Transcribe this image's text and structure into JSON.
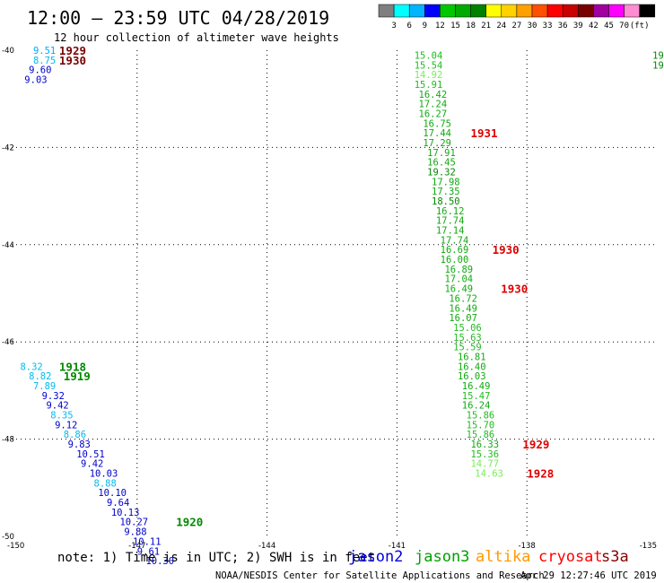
{
  "header": {
    "title": "12:00 — 23:59 UTC 04/28/2019",
    "subtitle": "12 hour collection of altimeter wave heights"
  },
  "color_scale": {
    "colors": [
      "#7f7f7f",
      "#00ffff",
      "#00b4ff",
      "#0000ff",
      "#00c800",
      "#00aa00",
      "#008200",
      "#ffff00",
      "#ffd200",
      "#ffa000",
      "#ff5000",
      "#ff0000",
      "#c80000",
      "#780000",
      "#a000a0",
      "#ff00ff",
      "#ff8cd2",
      "#000000"
    ],
    "labels": [
      "3",
      "6",
      "9",
      "12",
      "15",
      "18",
      "21",
      "24",
      "27",
      "30",
      "33",
      "36",
      "39",
      "42",
      "45",
      "70",
      "(ft)"
    ]
  },
  "footer": {
    "note": "note: 1) Time is in UTC; 2) SWH is in feet",
    "credit": "NOAA/NESDIS Center for Satellite Applications and Research",
    "timestamp": "Apr 29 12:27:46 UTC 2019"
  },
  "legend": [
    {
      "name": "jason2",
      "color": "#0000dd"
    },
    {
      "name": "jason3",
      "color": "#00a000"
    },
    {
      "name": "altika",
      "color": "#ff9900"
    },
    {
      "name": "cryosat",
      "color": "#ff0000"
    },
    {
      "name": "s3a",
      "color": "#880000"
    }
  ],
  "chart_data": {
    "type": "scatter",
    "title": "12:00 — 23:59 UTC 04/28/2019",
    "subtitle": "12 hour collection of altimeter wave heights",
    "xlim": [
      -150,
      -135
    ],
    "ylim": [
      -50,
      -40
    ],
    "x_ticks": [
      "-150",
      "-147",
      "-144",
      "-141",
      "-138",
      "-135"
    ],
    "y_ticks": [
      "-40",
      "-42",
      "-44",
      "-46",
      "-48",
      "-50"
    ],
    "grid": true,
    "colors": {
      "c6": "#00bbee",
      "c9": "#00aaff",
      "c12": "#0000cc",
      "c15": "#22bb22",
      "c18": "#11aa11",
      "c21": "#008800",
      "c24": "#c8c800",
      "c27": "#ddaa00",
      "c30": "#ff7700",
      "lg": "#77ee55",
      "red": "#dd0000",
      "dred": "#7a0000"
    },
    "points": [
      {
        "x": -149.4,
        "y": -40.0,
        "label": "9.51",
        "c": "c9"
      },
      {
        "x": -149.4,
        "y": -40.2,
        "label": "8.75",
        "c": "c6"
      },
      {
        "x": -149.5,
        "y": -40.4,
        "label": "9.60",
        "c": "c12"
      },
      {
        "x": -149.6,
        "y": -40.6,
        "label": "9.03",
        "c": "c12"
      },
      {
        "x": -149.7,
        "y": -46.5,
        "label": "8.32",
        "c": "c6"
      },
      {
        "x": -149.5,
        "y": -46.7,
        "label": "8.82",
        "c": "c6"
      },
      {
        "x": -149.4,
        "y": -46.9,
        "label": "7.89",
        "c": "c6"
      },
      {
        "x": -149.2,
        "y": -47.1,
        "label": "9.32",
        "c": "c12"
      },
      {
        "x": -149.1,
        "y": -47.3,
        "label": "9.42",
        "c": "c12"
      },
      {
        "x": -149.0,
        "y": -47.5,
        "label": "8.35",
        "c": "c6"
      },
      {
        "x": -148.9,
        "y": -47.7,
        "label": "9.12",
        "c": "c12"
      },
      {
        "x": -148.7,
        "y": -47.9,
        "label": "8.86",
        "c": "c6"
      },
      {
        "x": -148.6,
        "y": -48.1,
        "label": "9.83",
        "c": "c12"
      },
      {
        "x": -148.4,
        "y": -48.3,
        "label": "10.51",
        "c": "c12"
      },
      {
        "x": -148.3,
        "y": -48.5,
        "label": "9.42",
        "c": "c12"
      },
      {
        "x": -148.1,
        "y": -48.7,
        "label": "10.03",
        "c": "c12"
      },
      {
        "x": -148.0,
        "y": -48.9,
        "label": "8.88",
        "c": "c6"
      },
      {
        "x": -147.9,
        "y": -49.1,
        "label": "10.10",
        "c": "c12"
      },
      {
        "x": -147.7,
        "y": -49.3,
        "label": "9.64",
        "c": "c12"
      },
      {
        "x": -147.6,
        "y": -49.5,
        "label": "10.13",
        "c": "c12"
      },
      {
        "x": -147.4,
        "y": -49.7,
        "label": "10.27",
        "c": "c12"
      },
      {
        "x": -147.3,
        "y": -49.9,
        "label": "9.88",
        "c": "c12"
      },
      {
        "x": -147.1,
        "y": -50.1,
        "label": "10.11",
        "c": "c12"
      },
      {
        "x": -147.0,
        "y": -50.3,
        "label": "9.61",
        "c": "c12"
      },
      {
        "x": -146.8,
        "y": -50.5,
        "label": "10.30",
        "c": "c12"
      },
      {
        "x": -140.6,
        "y": -40.1,
        "label": "15.04",
        "c": "c15"
      },
      {
        "x": -140.6,
        "y": -40.3,
        "label": "15.54",
        "c": "c15"
      },
      {
        "x": -140.6,
        "y": -40.5,
        "label": "14.92",
        "c": "lg"
      },
      {
        "x": -140.6,
        "y": -40.7,
        "label": "15.91",
        "c": "c15"
      },
      {
        "x": -140.5,
        "y": -40.9,
        "label": "16.42",
        "c": "c18"
      },
      {
        "x": -140.5,
        "y": -41.1,
        "label": "17.24",
        "c": "c18"
      },
      {
        "x": -140.5,
        "y": -41.3,
        "label": "16.27",
        "c": "c18"
      },
      {
        "x": -140.4,
        "y": -41.5,
        "label": "16.75",
        "c": "c18"
      },
      {
        "x": -140.4,
        "y": -41.7,
        "label": "17.44",
        "c": "c18"
      },
      {
        "x": -140.4,
        "y": -41.9,
        "label": "17.29",
        "c": "c18"
      },
      {
        "x": -140.3,
        "y": -42.1,
        "label": "17.91",
        "c": "c18"
      },
      {
        "x": -140.3,
        "y": -42.3,
        "label": "16.45",
        "c": "c18"
      },
      {
        "x": -140.3,
        "y": -42.5,
        "label": "19.32",
        "c": "c21"
      },
      {
        "x": -140.2,
        "y": -42.7,
        "label": "17.98",
        "c": "c18"
      },
      {
        "x": -140.2,
        "y": -42.9,
        "label": "17.35",
        "c": "c18"
      },
      {
        "x": -140.2,
        "y": -43.1,
        "label": "18.50",
        "c": "c21"
      },
      {
        "x": -140.1,
        "y": -43.3,
        "label": "16.12",
        "c": "c18"
      },
      {
        "x": -140.1,
        "y": -43.5,
        "label": "17.74",
        "c": "c18"
      },
      {
        "x": -140.1,
        "y": -43.7,
        "label": "17.14",
        "c": "c18"
      },
      {
        "x": -140.0,
        "y": -43.9,
        "label": "17.74",
        "c": "c18"
      },
      {
        "x": -140.0,
        "y": -44.1,
        "label": "16.69",
        "c": "c18"
      },
      {
        "x": -140.0,
        "y": -44.3,
        "label": "16.00",
        "c": "c18"
      },
      {
        "x": -139.9,
        "y": -44.5,
        "label": "16.89",
        "c": "c18"
      },
      {
        "x": -139.9,
        "y": -44.7,
        "label": "17.04",
        "c": "c18"
      },
      {
        "x": -139.9,
        "y": -44.9,
        "label": "16.49",
        "c": "c18"
      },
      {
        "x": -139.8,
        "y": -45.1,
        "label": "16.72",
        "c": "c18"
      },
      {
        "x": -139.8,
        "y": -45.3,
        "label": "16.49",
        "c": "c18"
      },
      {
        "x": -139.8,
        "y": -45.5,
        "label": "16.07",
        "c": "c18"
      },
      {
        "x": -139.7,
        "y": -45.7,
        "label": "15.06",
        "c": "c15"
      },
      {
        "x": -139.7,
        "y": -45.9,
        "label": "15.63",
        "c": "c15"
      },
      {
        "x": -139.7,
        "y": -46.1,
        "label": "15.59",
        "c": "c15"
      },
      {
        "x": -139.6,
        "y": -46.3,
        "label": "16.81",
        "c": "c18"
      },
      {
        "x": -139.6,
        "y": -46.5,
        "label": "16.40",
        "c": "c18"
      },
      {
        "x": -139.6,
        "y": -46.7,
        "label": "16.03",
        "c": "c18"
      },
      {
        "x": -139.5,
        "y": -46.9,
        "label": "16.49",
        "c": "c18"
      },
      {
        "x": -139.5,
        "y": -47.1,
        "label": "15.47",
        "c": "c15"
      },
      {
        "x": -139.5,
        "y": -47.3,
        "label": "16.24",
        "c": "c18"
      },
      {
        "x": -139.4,
        "y": -47.5,
        "label": "15.86",
        "c": "c15"
      },
      {
        "x": -139.4,
        "y": -47.7,
        "label": "15.70",
        "c": "c15"
      },
      {
        "x": -139.4,
        "y": -47.9,
        "label": "15.86",
        "c": "c15"
      },
      {
        "x": -139.3,
        "y": -48.1,
        "label": "16.33",
        "c": "c18"
      },
      {
        "x": -139.3,
        "y": -48.3,
        "label": "15.36",
        "c": "c15"
      },
      {
        "x": -139.3,
        "y": -48.5,
        "label": "14.77",
        "c": "lg"
      },
      {
        "x": -139.2,
        "y": -48.7,
        "label": "14.63",
        "c": "lg"
      },
      {
        "x": -135.1,
        "y": -40.1,
        "label": "19",
        "c": "c21"
      },
      {
        "x": -135.1,
        "y": -40.3,
        "label": "19",
        "c": "c21"
      }
    ],
    "time_labels": [
      {
        "x": -148.8,
        "y": -40.0,
        "label": "1929",
        "c": "dred"
      },
      {
        "x": -148.8,
        "y": -40.2,
        "label": "1930",
        "c": "dred"
      },
      {
        "x": -148.8,
        "y": -46.5,
        "label": "1918",
        "c": "c21"
      },
      {
        "x": -148.7,
        "y": -46.7,
        "label": "1919",
        "c": "c21"
      },
      {
        "x": -146.1,
        "y": -49.7,
        "label": "1920",
        "c": "c21"
      },
      {
        "x": -139.3,
        "y": -41.7,
        "label": "1931",
        "c": "red"
      },
      {
        "x": -138.8,
        "y": -44.1,
        "label": "1930",
        "c": "red"
      },
      {
        "x": -138.6,
        "y": -44.9,
        "label": "1930",
        "c": "red"
      },
      {
        "x": -138.1,
        "y": -48.1,
        "label": "1929",
        "c": "red"
      },
      {
        "x": -138.0,
        "y": -48.7,
        "label": "1928",
        "c": "red"
      }
    ]
  }
}
